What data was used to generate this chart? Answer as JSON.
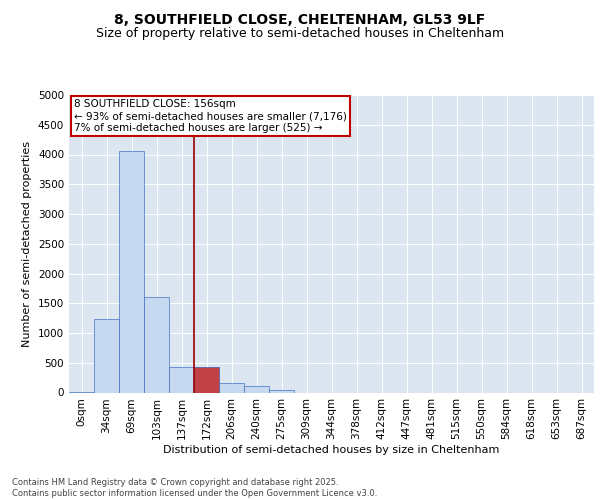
{
  "title1": "8, SOUTHFIELD CLOSE, CHELTENHAM, GL53 9LF",
  "title2": "Size of property relative to semi-detached houses in Cheltenham",
  "xlabel": "Distribution of semi-detached houses by size in Cheltenham",
  "ylabel": "Number of semi-detached properties",
  "bar_labels": [
    "0sqm",
    "34sqm",
    "69sqm",
    "103sqm",
    "137sqm",
    "172sqm",
    "206sqm",
    "240sqm",
    "275sqm",
    "309sqm",
    "344sqm",
    "378sqm",
    "412sqm",
    "447sqm",
    "481sqm",
    "515sqm",
    "550sqm",
    "584sqm",
    "618sqm",
    "653sqm",
    "687sqm"
  ],
  "bar_values": [
    10,
    1230,
    4060,
    1600,
    430,
    430,
    155,
    110,
    50,
    0,
    0,
    0,
    0,
    0,
    0,
    0,
    0,
    0,
    0,
    0,
    0
  ],
  "bar_color": "#c6d9f0",
  "bar_edge_color": "#4472c4",
  "highlight_bar_index": 5,
  "highlight_bar_value": 430,
  "highlight_color": "#c00000",
  "vline_color": "#9b0000",
  "annotation_text": "8 SOUTHFIELD CLOSE: 156sqm\n← 93% of semi-detached houses are smaller (7,176)\n7% of semi-detached houses are larger (525) →",
  "annotation_box_color": "#c00000",
  "ylim": [
    0,
    5000
  ],
  "yticks": [
    0,
    500,
    1000,
    1500,
    2000,
    2500,
    3000,
    3500,
    4000,
    4500,
    5000
  ],
  "background_color": "#dce6f1",
  "grid_color": "#ffffff",
  "footer": "Contains HM Land Registry data © Crown copyright and database right 2025.\nContains public sector information licensed under the Open Government Licence v3.0.",
  "title_fontsize": 10,
  "subtitle_fontsize": 9,
  "axis_label_fontsize": 8,
  "tick_fontsize": 7.5,
  "annotation_fontsize": 7.5,
  "footer_fontsize": 6
}
